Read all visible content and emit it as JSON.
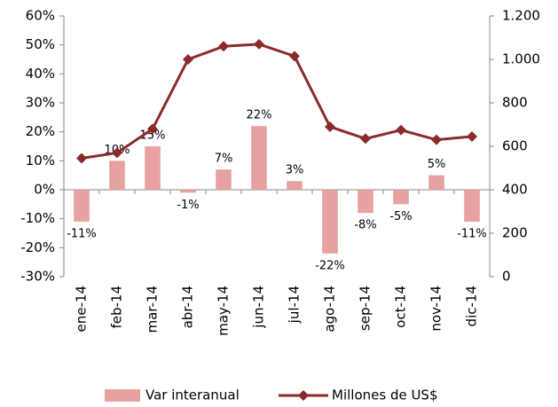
{
  "chart_data": {
    "type": "bar",
    "categories": [
      "ene-14",
      "feb-14",
      "mar-14",
      "abr-14",
      "may-14",
      "jun-14",
      "jul-14",
      "ago-14",
      "sep-14",
      "oct-14",
      "nov-14",
      "dic-14"
    ],
    "series": [
      {
        "name": "Var interanual",
        "type": "bar",
        "color": "#e6a1a1",
        "values": [
          -11,
          10,
          15,
          -1,
          7,
          22,
          3,
          -22,
          -8,
          -5,
          5,
          -11
        ],
        "value_labels": [
          "-11%",
          "10%",
          "15%",
          "-1%",
          "7%",
          "22%",
          "3%",
          "-22%",
          "-8%",
          "-5%",
          "5%",
          "-11%"
        ]
      },
      {
        "name": "Millones de US$",
        "type": "line",
        "color": "#8b2a2a",
        "axis": "y2",
        "values": [
          545,
          570,
          680,
          1000,
          1060,
          1070,
          1015,
          690,
          635,
          675,
          630,
          645
        ]
      }
    ],
    "ylim": [
      -30,
      60
    ],
    "yticks": [
      {
        "value": -30,
        "label": "-30%"
      },
      {
        "value": -20,
        "label": "-20%"
      },
      {
        "value": -10,
        "label": "-10%"
      },
      {
        "value": 0,
        "label": "0%"
      },
      {
        "value": 10,
        "label": "10%"
      },
      {
        "value": 20,
        "label": "20%"
      },
      {
        "value": 30,
        "label": "30%"
      },
      {
        "value": 40,
        "label": "40%"
      },
      {
        "value": 50,
        "label": "50%"
      },
      {
        "value": 60,
        "label": "60%"
      }
    ],
    "y2lim": [
      0,
      1200
    ],
    "y2ticks": [
      0,
      200,
      400,
      600,
      800,
      {
        "value": 1000,
        "label": "1.000"
      },
      {
        "value": 1200,
        "label": "1.200"
      }
    ],
    "grid": false,
    "legend": "bottom"
  }
}
